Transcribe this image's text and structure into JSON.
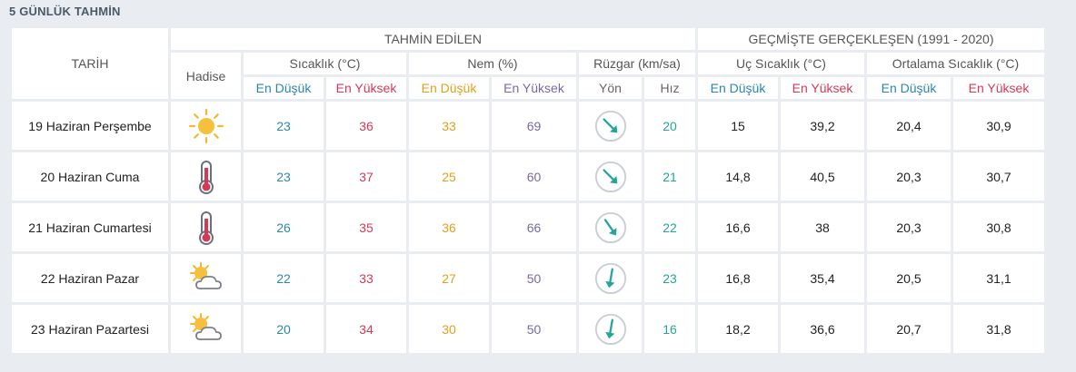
{
  "title": "5 GÜNLÜK TAHMİN",
  "header": {
    "date_col": "TARİH",
    "forecast_group": "TAHMİN EDİLEN",
    "history_group": "GEÇMİŞTE GERÇEKLEŞEN (1991 - 2020)",
    "hadise": "Hadise",
    "sicaklik": "Sıcaklık (°C)",
    "nem": "Nem (%)",
    "ruzgar": "Rüzgar (km/sa)",
    "uc_sicaklik": "Uç Sıcaklık (°C)",
    "ort_sicaklik": "Ortalama Sıcaklık (°C)",
    "en_dusuk": "En Düşük",
    "en_yuksek": "En Yüksek",
    "yon": "Yön",
    "hiz": "Hız"
  },
  "rows": [
    {
      "date": "19 Haziran Perşembe",
      "icon": "sun-icon",
      "min": "23",
      "max": "36",
      "hum_min": "33",
      "hum_max": "69",
      "wind_dir": "southeast",
      "wind_deg": 135,
      "wind_speed": "20",
      "rec_min": "15",
      "rec_max": "39,2",
      "avg_min": "20,4",
      "avg_max": "30,9"
    },
    {
      "date": "20 Haziran Cuma",
      "icon": "thermometer-hot-icon",
      "min": "23",
      "max": "37",
      "hum_min": "25",
      "hum_max": "60",
      "wind_dir": "southeast",
      "wind_deg": 135,
      "wind_speed": "21",
      "rec_min": "14,8",
      "rec_max": "40,5",
      "avg_min": "20,3",
      "avg_max": "30,7"
    },
    {
      "date": "21 Haziran Cumartesi",
      "icon": "thermometer-hot-icon",
      "min": "26",
      "max": "35",
      "hum_min": "36",
      "hum_max": "66",
      "wind_dir": "southeast",
      "wind_deg": 145,
      "wind_speed": "22",
      "rec_min": "16,6",
      "rec_max": "38",
      "avg_min": "20,3",
      "avg_max": "30,8"
    },
    {
      "date": "22 Haziran Pazar",
      "icon": "partly-cloudy-icon",
      "min": "22",
      "max": "33",
      "hum_min": "27",
      "hum_max": "50",
      "wind_dir": "south",
      "wind_deg": 190,
      "wind_speed": "23",
      "rec_min": "16,8",
      "rec_max": "35,4",
      "avg_min": "20,5",
      "avg_max": "31,1"
    },
    {
      "date": "23 Haziran Pazartesi",
      "icon": "partly-cloudy-icon",
      "min": "20",
      "max": "34",
      "hum_min": "30",
      "hum_max": "50",
      "wind_dir": "south",
      "wind_deg": 190,
      "wind_speed": "16",
      "rec_min": "18,2",
      "rec_max": "36,6",
      "avg_min": "20,7",
      "avg_max": "31,8"
    }
  ],
  "colors": {
    "low": "#2a86ad",
    "high": "#d33a56",
    "hum_low": "#e0a01c",
    "hum_high": "#7769a3",
    "wind": "#23a59a"
  }
}
